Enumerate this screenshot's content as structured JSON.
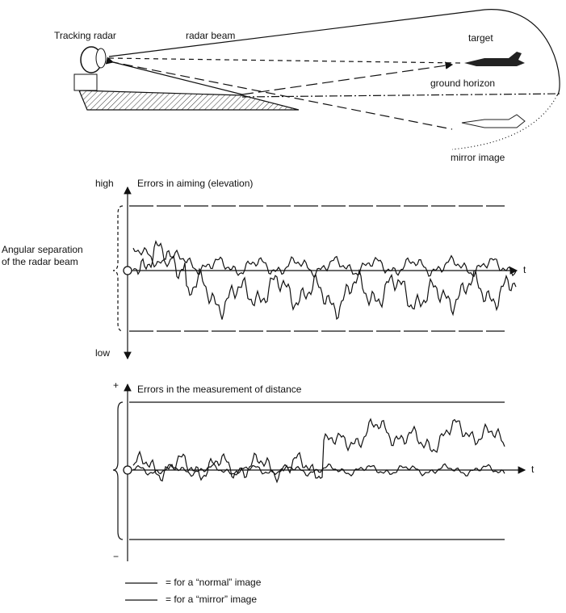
{
  "scene": {
    "tracking_radar": "Tracking radar",
    "radar_beam": "radar beam",
    "target": "target",
    "ground_horizon": "ground horizon",
    "mirror_image": "mirror image"
  },
  "elevation_plot": {
    "high": "high",
    "title": "Errors in aiming (elevation)",
    "side_label_1": "Angular separation",
    "side_label_2": "of the radar beam",
    "t": "t",
    "low": "low"
  },
  "distance_plot": {
    "plus": "+",
    "title": "Errors in the measurement of distance",
    "t": "t",
    "minus": "−"
  },
  "legend": {
    "normal": "= for a “normal” image",
    "mirror": "= for a “mirror” image"
  }
}
